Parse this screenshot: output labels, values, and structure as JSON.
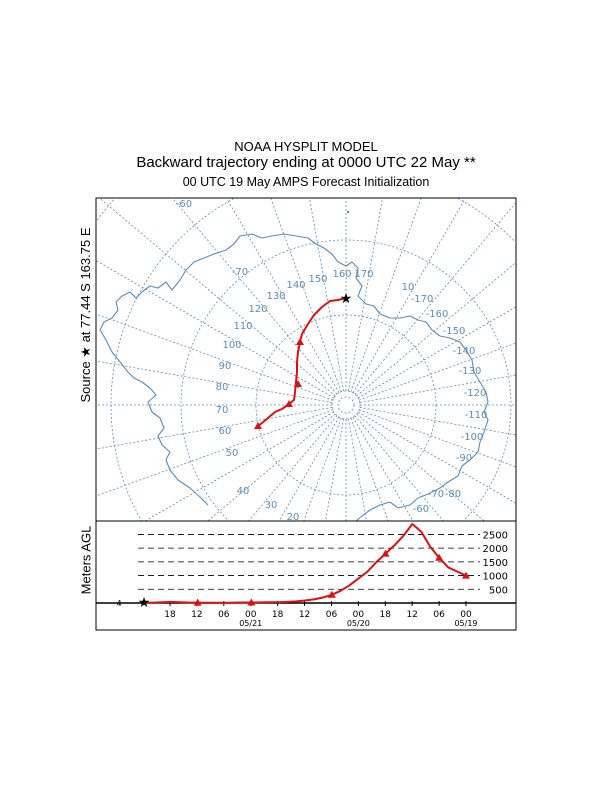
{
  "header": {
    "model": "NOAA HYSPLIT MODEL",
    "trajectory": "Backward trajectory ending at 0000 UTC 22 May **",
    "init": "00 UTC 19 May    AMPS  Forecast Initialization"
  },
  "source_label": "Source ★ at   77.44 S  163.75 E",
  "agl_axis_label": "Meters AGL",
  "map": {
    "latitude_labels": [
      "-60",
      "-70"
    ],
    "longitude_labels": [
      "170",
      "160",
      "150",
      "140",
      "130",
      "120",
      "110",
      "100",
      "90",
      "80",
      "70",
      "60",
      "50",
      "40",
      "30",
      "20",
      "10",
      "-170",
      "-160",
      "-150",
      "-140",
      "-130",
      "-120",
      "-110",
      "-100",
      "-90",
      "-80",
      "-70",
      "-60"
    ],
    "line_color": "#5b8db8",
    "trajectory_color": "#dd1111"
  },
  "altitude": {
    "levels": [
      {
        "value": 500,
        "label": "500"
      },
      {
        "value": 1000,
        "label": "1000"
      },
      {
        "value": 1500,
        "label": "1500"
      },
      {
        "value": 2000,
        "label": "2000"
      },
      {
        "value": 2500,
        "label": "2500"
      }
    ],
    "start_height": "4",
    "time_ticks": [
      "18",
      "12",
      "06",
      "00",
      "18",
      "12",
      "06",
      "00",
      "18",
      "12",
      "06",
      "00"
    ],
    "date_labels": [
      "05/21",
      "05/20",
      "05/19"
    ],
    "profile_m": [
      8,
      15,
      30,
      40,
      28,
      20,
      15,
      12,
      10,
      12,
      14,
      18,
      20,
      22,
      25,
      30,
      40,
      60,
      90,
      130,
      200,
      300,
      450,
      650,
      900,
      1150,
      1500,
      1800,
      2100,
      2450,
      2880,
      2600,
      2050,
      1650,
      1300,
      1150,
      1000
    ]
  }
}
